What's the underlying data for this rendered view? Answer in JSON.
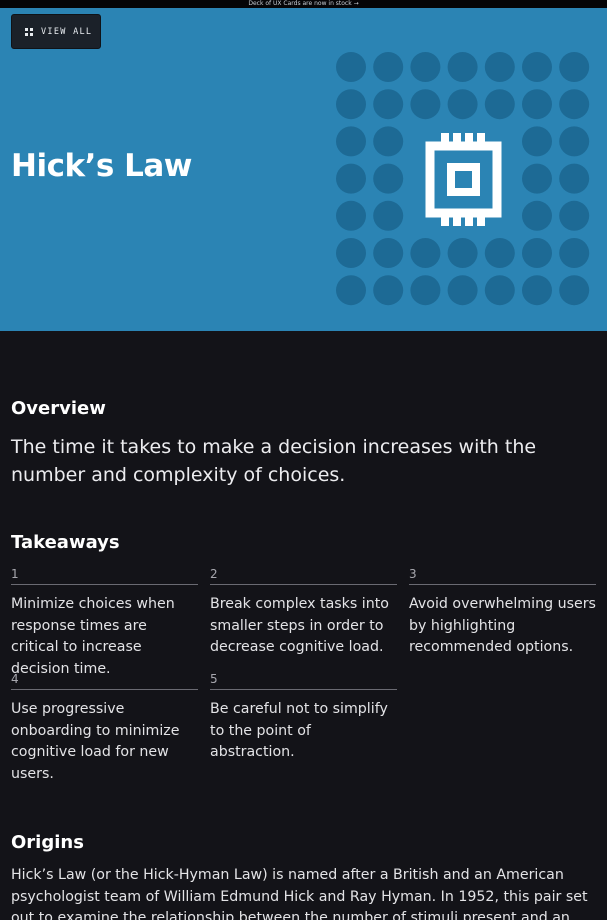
{
  "announcement": "Deck of UX Cards are now in stock →",
  "hero": {
    "view_all_label": "VIEW ALL",
    "title": "Hick’s Law",
    "bg_color": "#2b84b4",
    "dot_color": "#1d6a95",
    "chip_color": "#ffffff",
    "icon": "chip-icon"
  },
  "overview": {
    "heading": "Overview",
    "text": "The time it takes to make a decision increases with the number and complexity of choices."
  },
  "takeaways": {
    "heading": "Takeaways",
    "items": [
      {
        "num": "1",
        "text": "Minimize choices when response times are critical to increase decision time."
      },
      {
        "num": "2",
        "text": "Break complex tasks into smaller steps in order to decrease cognitive load."
      },
      {
        "num": "3",
        "text": "Avoid overwhelming users by highlighting recommended options."
      },
      {
        "num": "4",
        "text": "Use progressive onboarding to minimize cognitive load for new users."
      },
      {
        "num": "5",
        "text": "Be careful not to simplify to the point of abstraction."
      }
    ]
  },
  "origins": {
    "heading": "Origins",
    "text": "Hick’s Law (or the Hick-Hyman Law) is named after a British and an American psychologist team of William Edmund Hick and Ray Hyman. In 1952, this pair set out to examine the relationship between the number of stimuli present and an"
  }
}
